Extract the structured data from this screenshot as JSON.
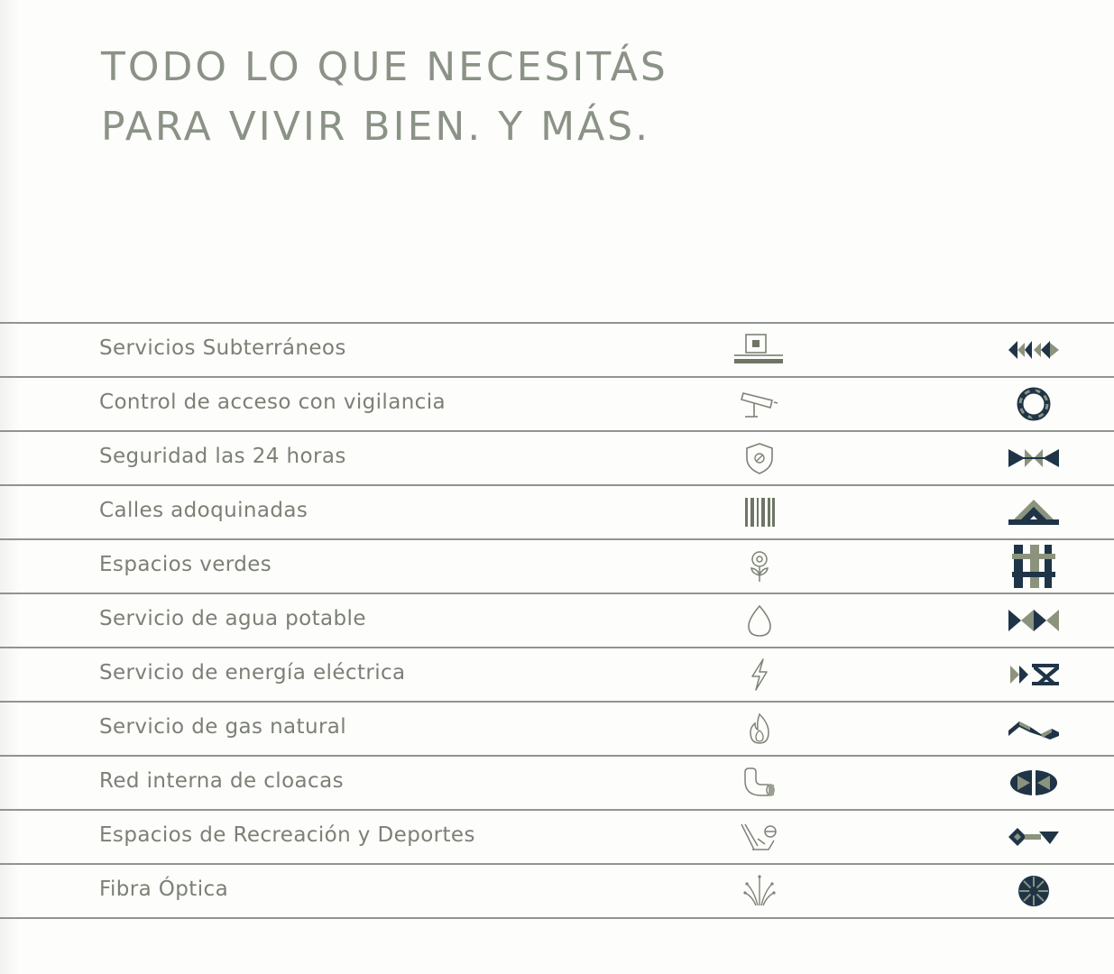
{
  "headline": {
    "line1": "TODO LO QUE NECESITÁS",
    "line2": "PARA VIVIR BIEN. Y MÁS."
  },
  "colors": {
    "headline": "#8b9286",
    "label": "#7b8075",
    "divider": "#8f9590",
    "icon": "#7d8376",
    "motif_dark": "#1f3447",
    "motif_sage": "#8b937d"
  },
  "services": [
    {
      "label": "Servicios Subterráneos",
      "icon": "underground-icon",
      "motif": "arrows-motif"
    },
    {
      "label": "Control de acceso con vigilancia",
      "icon": "security-camera-icon",
      "motif": "ring-motif"
    },
    {
      "label": "Seguridad las 24 horas",
      "icon": "shield-icon",
      "motif": "bowtie-motif"
    },
    {
      "label": "Calles adoquinadas",
      "icon": "paving-bars-icon",
      "motif": "arch-motif"
    },
    {
      "label": "Espacios verdes",
      "icon": "flower-icon",
      "motif": "grid-motif"
    },
    {
      "label": "Servicio de agua potable",
      "icon": "water-drop-icon",
      "motif": "double-bowtie-motif"
    },
    {
      "label": "Servicio de energía eléctrica",
      "icon": "lightning-icon",
      "motif": "x-chevron-motif"
    },
    {
      "label": "Servicio de gas natural",
      "icon": "flame-icon",
      "motif": "wave-motif"
    },
    {
      "label": "Red interna de cloacas",
      "icon": "pipe-icon",
      "motif": "split-circle-motif"
    },
    {
      "label": "Espacios de Recreación y Deportes",
      "icon": "sports-icon",
      "motif": "key-motif"
    },
    {
      "label": "Fibra Óptica",
      "icon": "fiber-optic-icon",
      "motif": "starburst-motif"
    }
  ]
}
